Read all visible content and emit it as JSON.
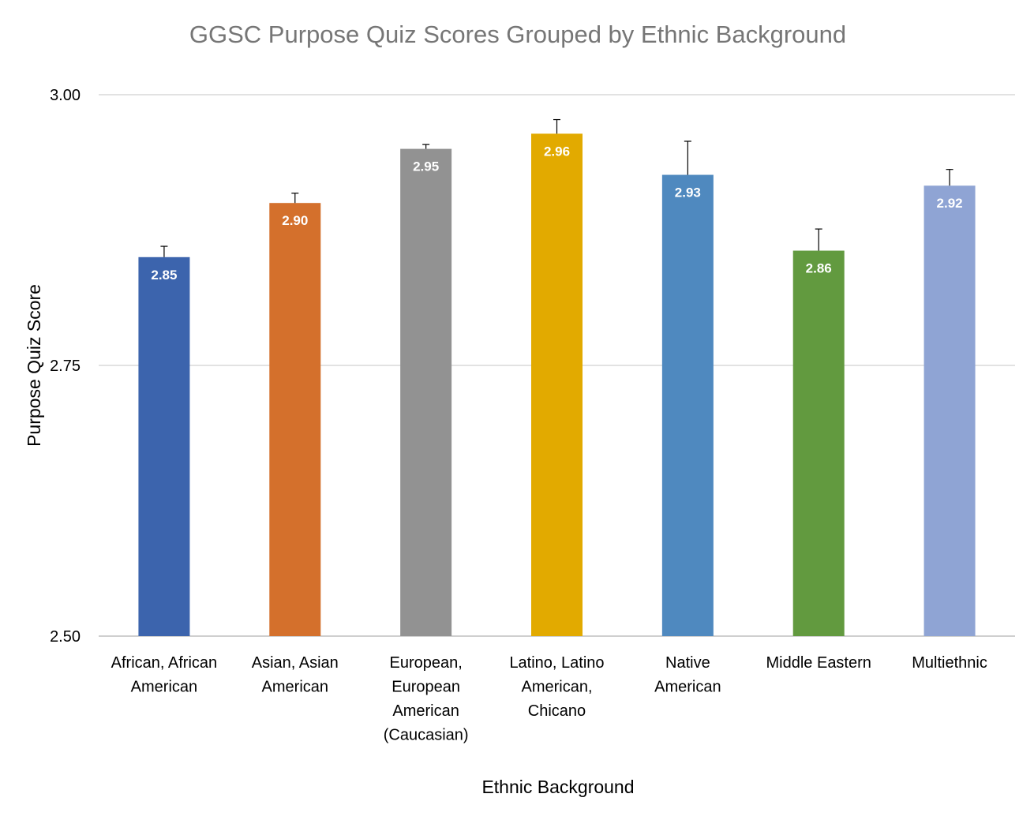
{
  "chart_data": {
    "type": "bar",
    "title": "GGSC Purpose Quiz Scores Grouped by Ethnic Background",
    "xlabel": "Ethnic Background",
    "ylabel": "Purpose Quiz Score",
    "ylim": [
      2.5,
      3.0
    ],
    "yticks": [
      "2.50",
      "2.75",
      "3.00"
    ],
    "grid": true,
    "legend": "none",
    "categories": [
      [
        "African, African",
        "American"
      ],
      [
        "Asian, Asian",
        "American"
      ],
      [
        "European,",
        "European",
        "American",
        "(Caucasian)"
      ],
      [
        "Latino, Latino",
        "American,",
        "Chicano"
      ],
      [
        "Native",
        "American"
      ],
      [
        "Middle Eastern"
      ],
      [
        "Multiethnic"
      ]
    ],
    "values": [
      2.85,
      2.9,
      2.95,
      2.964,
      2.926,
      2.856,
      2.916
    ],
    "data_labels": [
      "2.85",
      "2.90",
      "2.95",
      "2.96",
      "2.93",
      "2.86",
      "2.92"
    ],
    "error_upper": [
      0.01,
      0.009,
      0.004,
      0.013,
      0.031,
      0.02,
      0.015
    ],
    "colors": [
      "#3c64ad",
      "#d4702c",
      "#929292",
      "#e2aa00",
      "#4f89bf",
      "#629a3f",
      "#8fa4d4"
    ]
  }
}
